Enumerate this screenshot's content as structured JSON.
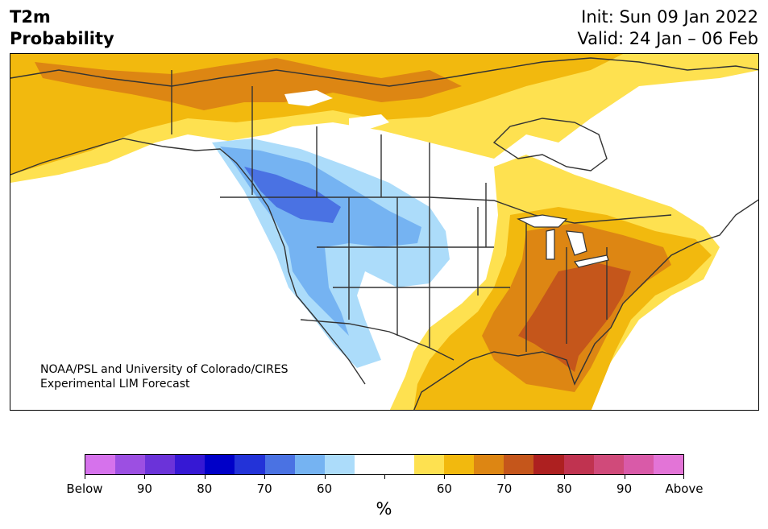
{
  "header": {
    "title_line1": "T2m",
    "title_line2": "Probability",
    "init_text": "Init: Sun 09 Jan 2022",
    "valid_text": "Valid: 24 Jan – 06 Feb"
  },
  "map": {
    "credit_line1": "NOAA/PSL and University of Colorado/CIRES",
    "credit_line2": "Experimental LIM Forecast",
    "colors": {
      "below_60": "#acdcfa",
      "below_70": "#75b3f2",
      "below_80": "#4a72e3",
      "above_60": "#fee150",
      "above_70": "#f2b90e",
      "above_80": "#dd8613",
      "above_90": "#c5561b"
    }
  },
  "colorbar": {
    "unit_label": "%",
    "colors": [
      "#d672ec",
      "#9c4fe2",
      "#6b33d9",
      "#3618d4",
      "#0000c8",
      "#2333d8",
      "#4a72e3",
      "#75b3f2",
      "#acdcfa",
      "#ffffff",
      "#ffffff",
      "#fee150",
      "#f2b90e",
      "#dd8613",
      "#c5561b",
      "#ad2020",
      "#c03350",
      "#d04a7a",
      "#d95aa8",
      "#e374d7"
    ],
    "tick_labels": [
      "Below",
      "90",
      "80",
      "70",
      "60",
      "",
      "60",
      "70",
      "80",
      "90",
      "Above"
    ]
  }
}
